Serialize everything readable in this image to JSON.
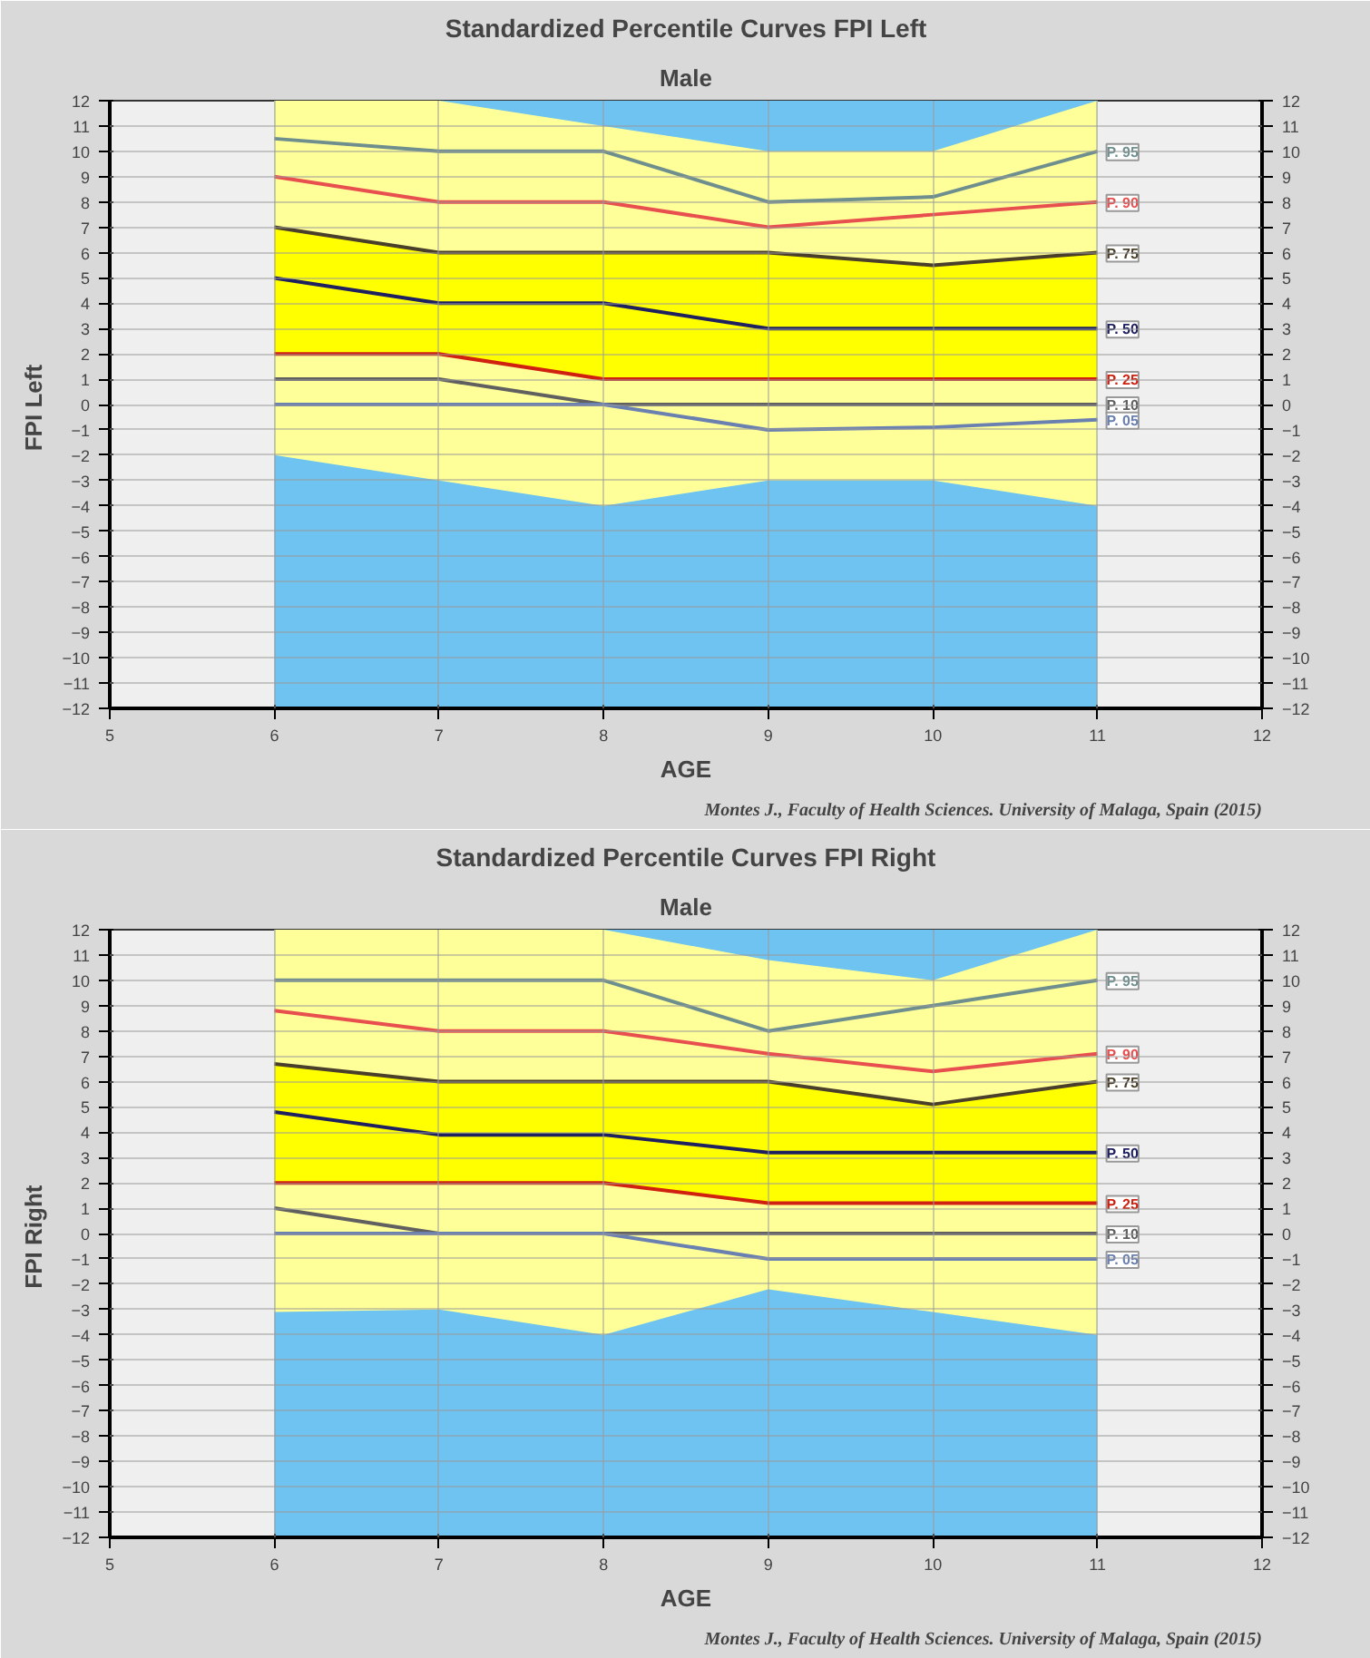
{
  "chart_data": [
    {
      "type": "line",
      "title": "Standardized Percentile Curves FPI Left",
      "subtitle": "Male",
      "xlabel": "AGE",
      "ylabel": "FPI  Left",
      "x": [
        6,
        7,
        8,
        9,
        10,
        11
      ],
      "xlim": [
        5,
        12
      ],
      "xticks": [
        5,
        6,
        7,
        8,
        9,
        10,
        11,
        12
      ],
      "ylim": [
        -12,
        12
      ],
      "yticks": [
        -12,
        -11,
        -10,
        -9,
        -8,
        -7,
        -6,
        -5,
        -4,
        -3,
        -2,
        -1,
        0,
        1,
        2,
        3,
        4,
        5,
        6,
        7,
        8,
        9,
        10,
        11,
        12
      ],
      "y2lim": [
        -12,
        12
      ],
      "y2ticks": [
        -12,
        -11,
        -10,
        -9,
        -8,
        -7,
        -6,
        -5,
        -4,
        -3,
        -2,
        -1,
        0,
        1,
        2,
        3,
        4,
        5,
        6,
        7,
        8,
        9,
        10,
        11,
        12
      ],
      "grid": true,
      "legend": "right",
      "marker": "none",
      "line_style": "solid",
      "bands": [
        {
          "axis": "x",
          "from": 6,
          "to": 11,
          "color": "#6ec3f0"
        }
      ],
      "series": [
        {
          "name": "P. 95",
          "color": "#6f8f8f",
          "values": [
            10.5,
            10,
            10,
            8,
            8.2,
            10
          ]
        },
        {
          "name": "P. 90",
          "color": "#e85050",
          "values": [
            9,
            8,
            8,
            7,
            7.5,
            8
          ]
        },
        {
          "name": "P. 75",
          "color": "#4a3f2a",
          "values": [
            7,
            6,
            6,
            6,
            5.5,
            6
          ]
        },
        {
          "name": "P. 50",
          "color": "#1f2060",
          "values": [
            5,
            4,
            4,
            3,
            3,
            3
          ],
          "lower": [
            2,
            2,
            1,
            1,
            1,
            1
          ],
          "upper": [
            7,
            6,
            6,
            6,
            5.5,
            6
          ]
        },
        {
          "name": "P. 25",
          "color": "#d02010",
          "values": [
            2,
            2,
            1,
            1,
            1,
            1
          ]
        },
        {
          "name": "P. 10",
          "color": "#606060",
          "values": [
            1,
            1,
            0,
            0,
            0,
            0
          ],
          "lower": [
            -2,
            -3,
            -4,
            -3,
            -3,
            -4
          ],
          "upper": [
            12,
            12,
            11,
            10,
            10,
            12
          ]
        },
        {
          "name": "P. 05",
          "color": "#6a80b0",
          "values": [
            0,
            0,
            0,
            -1,
            -0.9,
            -0.6
          ]
        }
      ],
      "annotations": [
        "Montes J., Faculty of Health Sciences. University of Malaga, Spain (2015)"
      ]
    },
    {
      "type": "line",
      "title": "Standardized Percentile Curves FPI Right",
      "subtitle": "Male",
      "xlabel": "AGE",
      "ylabel": "FPI  Right",
      "x": [
        6,
        7,
        8,
        9,
        10,
        11
      ],
      "xlim": [
        5,
        12
      ],
      "xticks": [
        5,
        6,
        7,
        8,
        9,
        10,
        11,
        12
      ],
      "ylim": [
        -12,
        12
      ],
      "yticks": [
        -12,
        -11,
        -10,
        -9,
        -8,
        -7,
        -6,
        -5,
        -4,
        -3,
        -2,
        -1,
        0,
        1,
        2,
        3,
        4,
        5,
        6,
        7,
        8,
        9,
        10,
        11,
        12
      ],
      "y2lim": [
        -12,
        12
      ],
      "y2ticks": [
        -12,
        -11,
        -10,
        -9,
        -8,
        -7,
        -6,
        -5,
        -4,
        -3,
        -2,
        -1,
        0,
        1,
        2,
        3,
        4,
        5,
        6,
        7,
        8,
        9,
        10,
        11,
        12
      ],
      "grid": true,
      "legend": "right",
      "marker": "none",
      "line_style": "solid",
      "bands": [
        {
          "axis": "x",
          "from": 6,
          "to": 11,
          "color": "#6ec3f0"
        }
      ],
      "series": [
        {
          "name": "P. 95",
          "color": "#6f8f8f",
          "values": [
            10,
            10,
            10,
            8,
            9,
            10
          ]
        },
        {
          "name": "P. 90",
          "color": "#e85050",
          "values": [
            8.8,
            8,
            8,
            7.1,
            6.4,
            7.1
          ]
        },
        {
          "name": "P. 75",
          "color": "#4a3f2a",
          "values": [
            6.7,
            6,
            6,
            6,
            5.1,
            6
          ]
        },
        {
          "name": "P. 50",
          "color": "#1f2060",
          "values": [
            4.8,
            3.9,
            3.9,
            3.2,
            3.2,
            3.2
          ],
          "lower": [
            2,
            2,
            2,
            1.2,
            1.2,
            1.2
          ],
          "upper": [
            6.7,
            6,
            6,
            6,
            5.1,
            6
          ]
        },
        {
          "name": "P. 25",
          "color": "#d02010",
          "values": [
            2,
            2,
            2,
            1.2,
            1.2,
            1.2
          ]
        },
        {
          "name": "P. 10",
          "color": "#606060",
          "values": [
            1,
            0,
            0,
            0,
            0,
            0
          ],
          "lower": [
            -3.1,
            -3,
            -4,
            -2.2,
            -3.1,
            -4
          ],
          "upper": [
            12,
            12,
            12,
            10.8,
            10,
            12
          ]
        },
        {
          "name": "P. 05",
          "color": "#6a80b0",
          "values": [
            0,
            0,
            0,
            -1,
            -1,
            -1
          ]
        }
      ],
      "annotations": [
        "Montes J., Faculty of Health Sciences. University of Malaga, Spain (2015)"
      ]
    }
  ]
}
